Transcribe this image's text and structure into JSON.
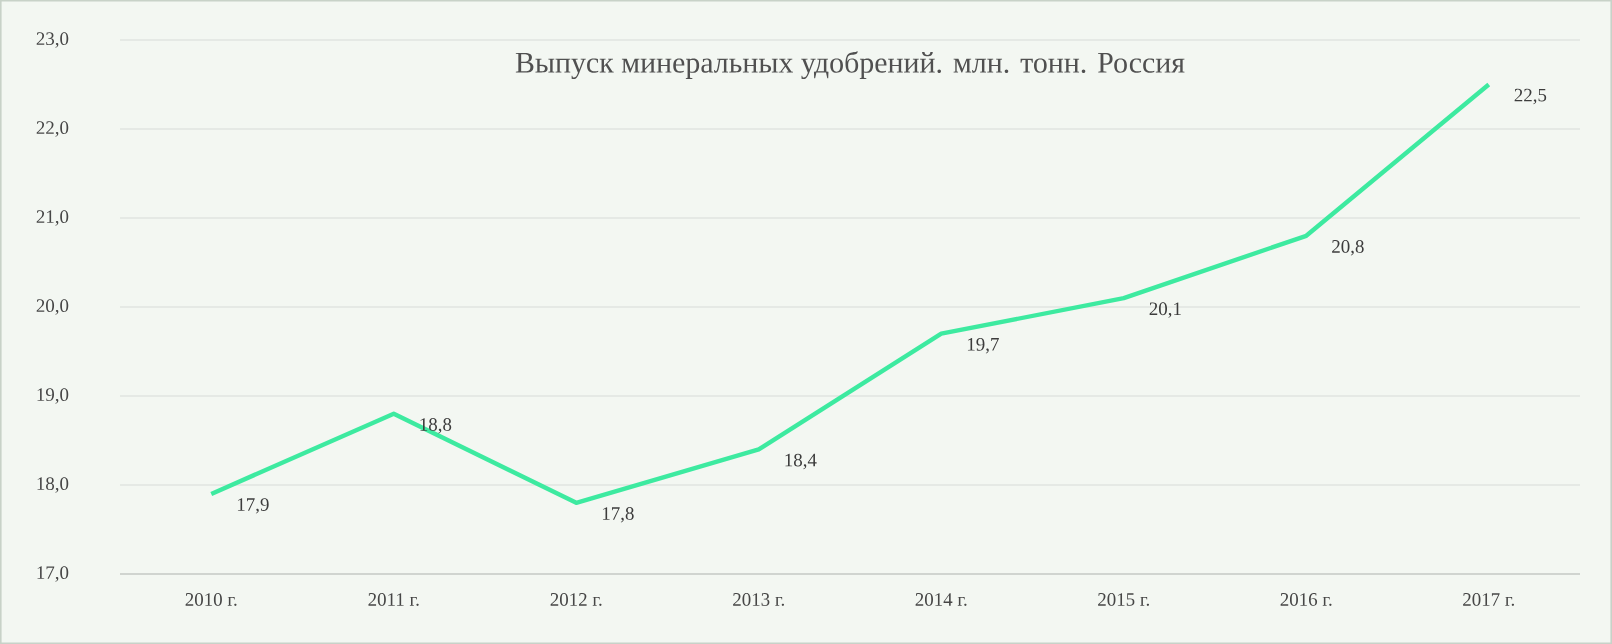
{
  "chart_data": {
    "type": "line",
    "title": "Выпуск минеральных удобрений. млн. тонн. Россия",
    "categories": [
      "2010 г.",
      "2011 г.",
      "2012 г.",
      "2013 г.",
      "2014 г.",
      "2015 г.",
      "2016 г.",
      "2017 г."
    ],
    "series": [
      {
        "color": "#3deaa0",
        "values": [
          17.9,
          18.8,
          17.8,
          18.4,
          19.7,
          20.1,
          20.8,
          22.5
        ],
        "value_labels": [
          "17,9",
          "18,8",
          "17,8",
          "18,4",
          "19,7",
          "20,1",
          "20,8",
          "22,5"
        ]
      }
    ],
    "ylim": [
      17,
      23
    ],
    "yticks": [
      {
        "value": 17,
        "label": "17,0"
      },
      {
        "value": 18,
        "label": "18,0"
      },
      {
        "value": 19,
        "label": "19,0"
      },
      {
        "value": 20,
        "label": "20,0"
      },
      {
        "value": 21,
        "label": "21,0"
      },
      {
        "value": 22,
        "label": "22,0"
      },
      {
        "value": 23,
        "label": "23,0"
      }
    ],
    "grid": "y",
    "marker": "none",
    "line_style": "solid"
  }
}
